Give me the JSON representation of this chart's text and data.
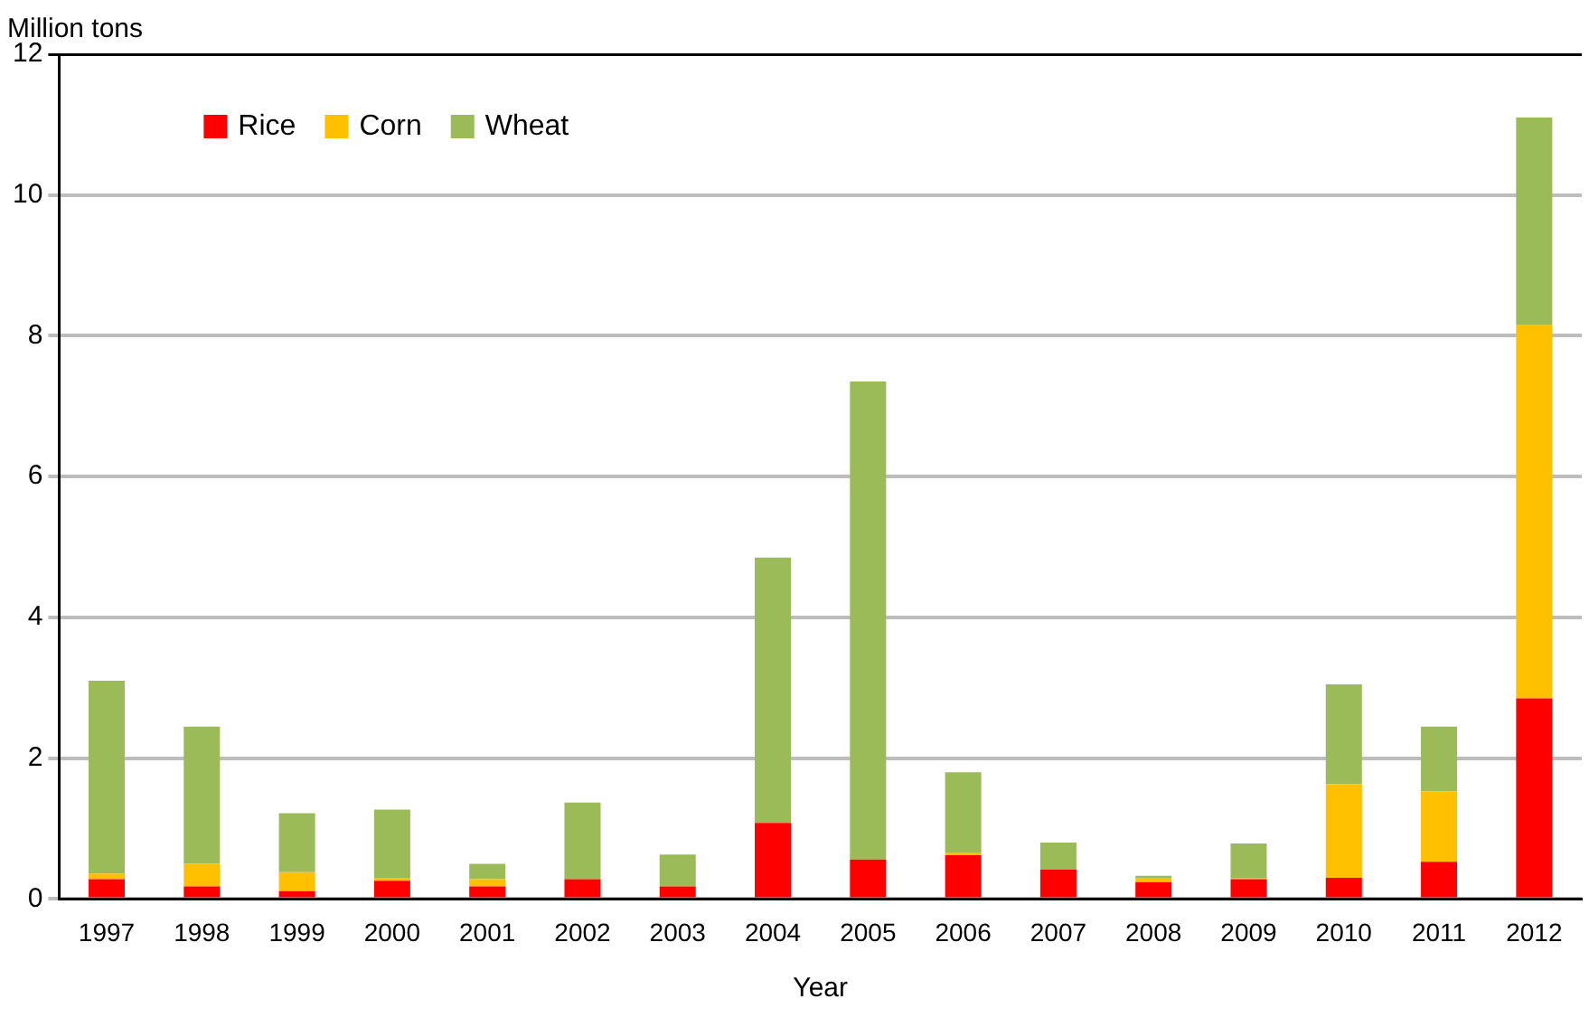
{
  "chart_data": {
    "type": "bar",
    "stacked": true,
    "ylabel": "Million tons",
    "xlabel": "Year",
    "categories": [
      "1997",
      "1998",
      "1999",
      "2000",
      "2001",
      "2002",
      "2003",
      "2004",
      "2005",
      "2006",
      "2007",
      "2008",
      "2009",
      "2010",
      "2011",
      "2012"
    ],
    "series": [
      {
        "name": "Rice",
        "color": "#ff0000",
        "values": [
          0.28,
          0.18,
          0.11,
          0.26,
          0.18,
          0.28,
          0.18,
          1.08,
          0.56,
          0.62,
          0.42,
          0.24,
          0.28,
          0.3,
          0.53,
          2.85
        ]
      },
      {
        "name": "Corn",
        "color": "#ffc000",
        "values": [
          0.08,
          0.32,
          0.27,
          0.03,
          0.1,
          0,
          0,
          0,
          0,
          0.03,
          0,
          0.06,
          0.02,
          1.33,
          1.0,
          5.3
        ]
      },
      {
        "name": "Wheat",
        "color": "#9bbb59",
        "values": [
          2.74,
          1.95,
          0.84,
          0.98,
          0.22,
          1.09,
          0.45,
          3.77,
          6.79,
          1.15,
          0.38,
          0.03,
          0.49,
          1.42,
          0.92,
          2.95
        ]
      }
    ],
    "ylim": [
      0,
      12
    ],
    "yticks": [
      0,
      2,
      4,
      6,
      8,
      10,
      12
    ],
    "grid": "y",
    "legend": "top left"
  }
}
